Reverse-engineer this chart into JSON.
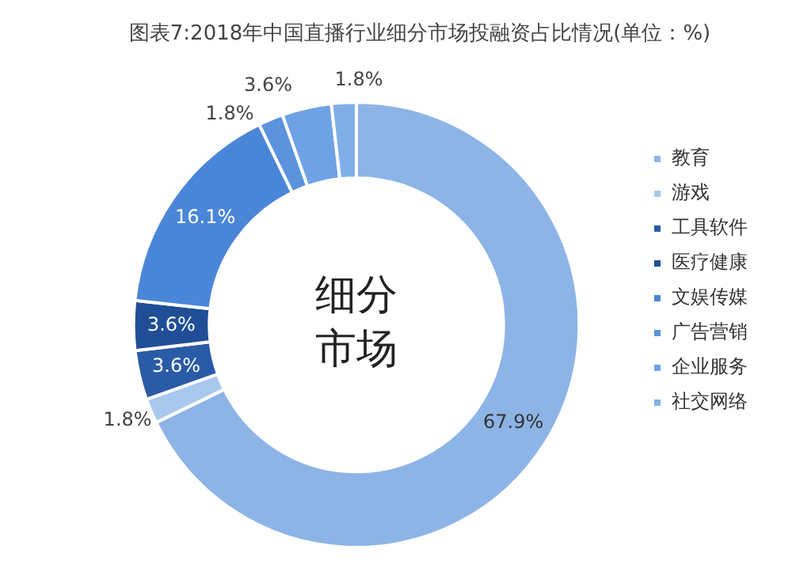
{
  "chart_data": {
    "type": "donut",
    "title": "图表7:2018年中国直播行业细分市场投融资占比情况(单位：%)",
    "categories": [
      "教育",
      "游戏",
      "工具软件",
      "医疗健康",
      "文娱传媒",
      "广告营销",
      "企业服务",
      "社交网络"
    ],
    "values": [
      67.9,
      1.8,
      3.6,
      3.6,
      16.1,
      1.8,
      3.6,
      1.8
    ],
    "value_labels": [
      "67.9%",
      "1.8%",
      "3.6%",
      "3.6%",
      "16.1%",
      "1.8%",
      "3.6%",
      "1.8%"
    ],
    "colors": [
      "#8db4e6",
      "#a9c8ee",
      "#2a5ba6",
      "#1f4e96",
      "#4a86d8",
      "#5b93dd",
      "#6fa2e4",
      "#80afe8"
    ],
    "annotations": [
      "细分市场"
    ],
    "legend": "right"
  }
}
